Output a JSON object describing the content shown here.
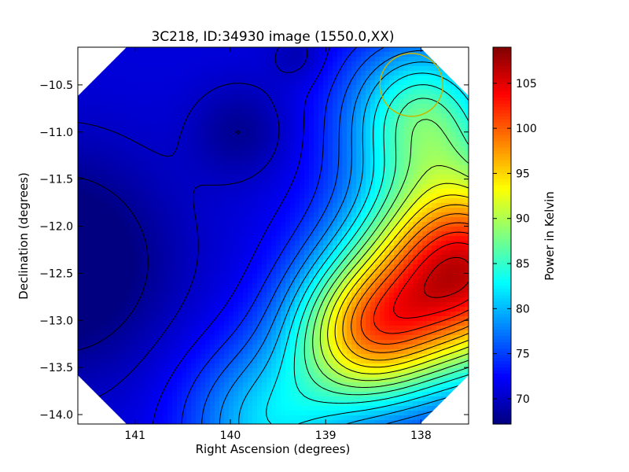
{
  "chart_data": {
    "type": "heatmap",
    "title": "3C218, ID:34930 image (1550.0,XX)",
    "xlabel": "Right Ascension (degrees)",
    "ylabel": "Declination (degrees)",
    "xlim": [
      141.6,
      137.5
    ],
    "ylim": [
      -14.1,
      -10.1
    ],
    "x_ticks": [
      141,
      140,
      139,
      138
    ],
    "x_tick_labels": [
      "141",
      "140",
      "139",
      "138"
    ],
    "y_ticks": [
      -10.5,
      -11.0,
      -11.5,
      -12.0,
      -12.5,
      -13.0,
      -13.5,
      -14.0
    ],
    "y_tick_labels": [
      "−10.5",
      "−11.0",
      "−11.5",
      "−12.0",
      "−12.5",
      "−13.0",
      "−13.5",
      "−14.0"
    ],
    "colorbar": {
      "label": "Power in Kelvin",
      "min": 67.2,
      "max": 109.0,
      "ticks": [
        70,
        75,
        80,
        85,
        90,
        95,
        100,
        105
      ],
      "tick_labels": [
        "70",
        "75",
        "80",
        "85",
        "90",
        "95",
        "100",
        "105"
      ],
      "colormap": "jet"
    },
    "field": {
      "background": 71,
      "features": [
        {
          "ra": 141.8,
          "dec": -12.4,
          "amp": -6.0,
          "sigma": 0.8
        },
        {
          "ra": 137.55,
          "dec": -12.45,
          "amp": 34.0,
          "sigma": 0.75
        },
        {
          "ra": 138.6,
          "dec": -13.15,
          "amp": 20.0,
          "sigma": 0.55
        },
        {
          "ra": 138.0,
          "dec": -10.8,
          "amp": 14.0,
          "sigma": 0.55
        },
        {
          "ra": 139.6,
          "dec": -14.1,
          "amp": 10.0,
          "sigma": 0.6
        },
        {
          "ra": 139.9,
          "dec": -11.0,
          "amp": -3.0,
          "sigma": 0.35
        },
        {
          "ra": 139.3,
          "dec": -10.2,
          "amp": -2.0,
          "sigma": 0.2
        }
      ],
      "contour_levels": [
        68,
        70,
        72,
        74,
        76,
        78,
        80,
        82,
        84,
        86,
        88,
        90,
        92,
        94,
        96,
        98,
        100,
        102,
        104,
        106
      ]
    },
    "marker": {
      "shape": "circle",
      "ra": 138.1,
      "dec": -10.5,
      "color": "#c8b400"
    },
    "grid": false,
    "legend": "none"
  }
}
